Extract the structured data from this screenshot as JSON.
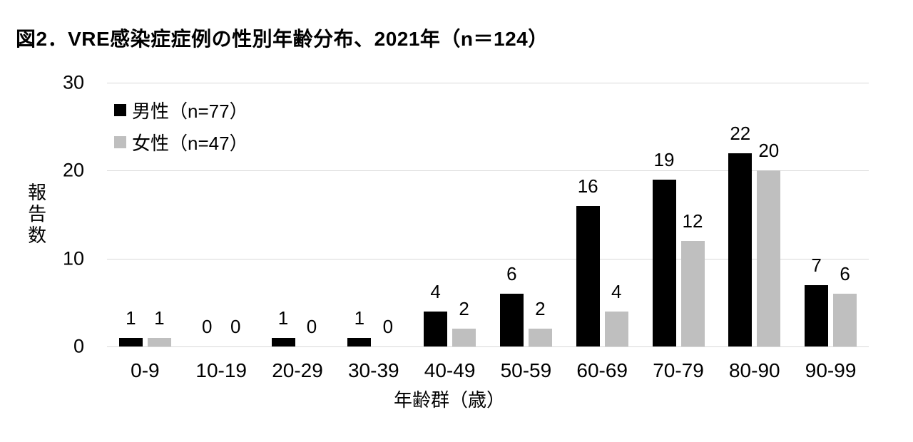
{
  "chart_data": {
    "type": "bar",
    "title": "図2．VRE感染症症例の性別年齢分布、2021年（n＝124）",
    "categories": [
      "0-9",
      "10-19",
      "20-29",
      "30-39",
      "40-49",
      "50-59",
      "60-69",
      "70-79",
      "80-90",
      "90-99"
    ],
    "series": [
      {
        "name": "男性（n=77）",
        "color": "#000000",
        "values": [
          1,
          0,
          1,
          1,
          4,
          6,
          16,
          19,
          22,
          7
        ]
      },
      {
        "name": "女性（n=47）",
        "color": "#bfbfbf",
        "values": [
          1,
          0,
          0,
          0,
          2,
          2,
          4,
          12,
          20,
          6
        ]
      }
    ],
    "xlabel": "年齢群（歳）",
    "ylabel": "報告数",
    "ylim": [
      0,
      30
    ],
    "yticks": [
      0,
      10,
      20,
      30
    ],
    "grid": true,
    "data_labels": true,
    "legend_position": "top-left-inside",
    "colors": {
      "gridline": "#d9d9d9",
      "axis_line": "#d9d9d9",
      "text": "#000000",
      "background": "#ffffff"
    }
  }
}
